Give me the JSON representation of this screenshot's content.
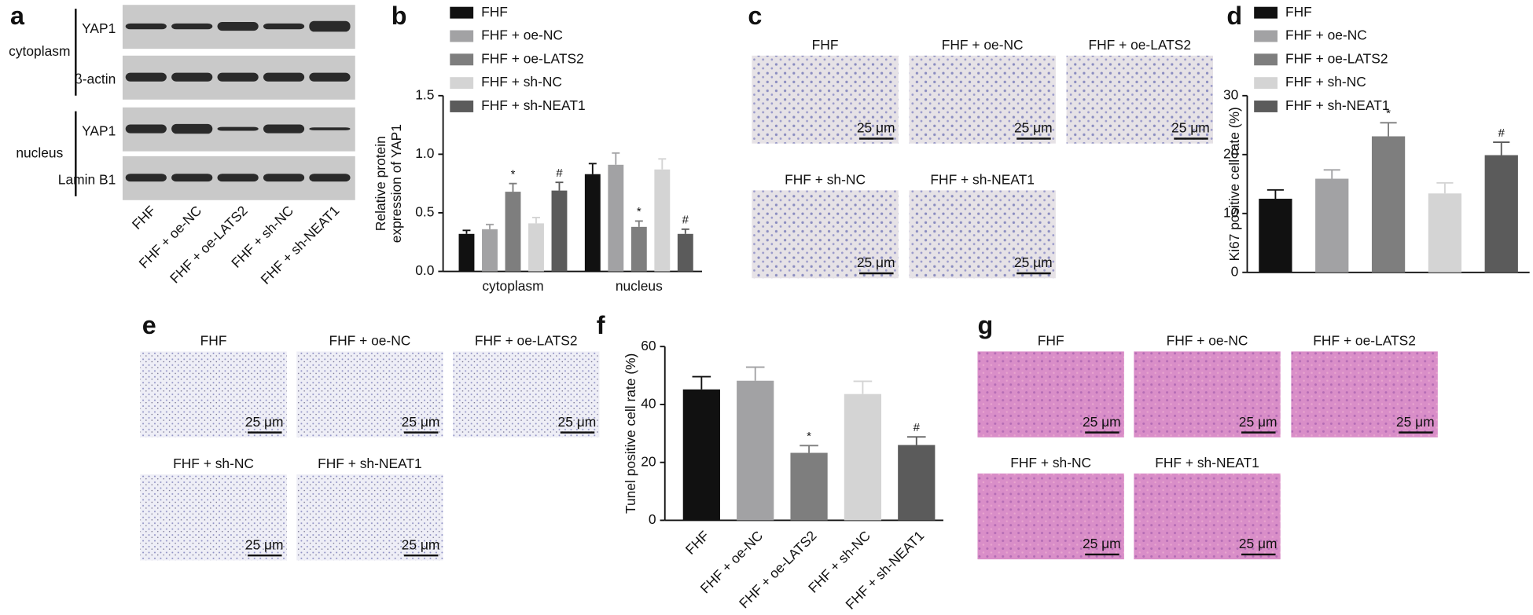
{
  "panel_labels": [
    "a",
    "b",
    "c",
    "d",
    "e",
    "f",
    "g"
  ],
  "blot": {
    "fractions": [
      {
        "name": "cytoplasm",
        "rows": [
          "YAP1",
          "β-actin"
        ]
      },
      {
        "name": "nucleus",
        "rows": [
          "YAP1",
          "Lamin B1"
        ]
      }
    ],
    "lanes": [
      "FHF",
      "FHF + oe-NC",
      "FHF + oe-LATS2",
      "FHF + sh-NC",
      "FHF + sh-NEAT1"
    ]
  },
  "micrographs": {
    "c": {
      "captions": [
        "FHF",
        "FHF + oe-NC",
        "FHF + oe-LATS2",
        "FHF + sh-NC",
        "FHF + sh-NEAT1"
      ],
      "scale_bar": "25 μm"
    },
    "e": {
      "captions": [
        "FHF",
        "FHF + oe-NC",
        "FHF + oe-LATS2",
        "FHF + sh-NC",
        "FHF + sh-NEAT1"
      ],
      "scale_bar": "25 μm"
    },
    "g": {
      "captions": [
        "FHF",
        "FHF + oe-NC",
        "FHF + oe-LATS2",
        "FHF + sh-NC",
        "FHF + sh-NEAT1"
      ],
      "scale_bar": "25 μm"
    }
  },
  "chart_data": [
    {
      "type": "bar",
      "ylabel": [
        "Relative protein",
        "expression of YAP1"
      ],
      "categories": [
        "cytoplasm",
        "nucleus"
      ],
      "series": [
        {
          "name": "FHF",
          "color": "#111111",
          "values": [
            0.32,
            0.83
          ],
          "errors": [
            0.03,
            0.09
          ]
        },
        {
          "name": "FHF + oe-NC",
          "color": "#a2a2a4",
          "values": [
            0.36,
            0.91
          ],
          "errors": [
            0.04,
            0.1
          ]
        },
        {
          "name": "FHF + oe-LATS2",
          "color": "#7e7e7e",
          "values": [
            0.68,
            0.38
          ],
          "errors": [
            0.07,
            0.05
          ],
          "annotations": [
            "*",
            "*"
          ]
        },
        {
          "name": "FHF + sh-NC",
          "color": "#d4d4d4",
          "values": [
            0.41,
            0.87
          ],
          "errors": [
            0.05,
            0.09
          ]
        },
        {
          "name": "FHF + sh-NEAT1",
          "color": "#5b5b5b",
          "values": [
            0.69,
            0.32
          ],
          "errors": [
            0.07,
            0.04
          ],
          "annotations": [
            "#",
            "#"
          ]
        }
      ],
      "ylim": [
        0,
        1.5
      ],
      "yticks": [
        {
          "value": 0,
          "label": "0.0"
        },
        0.5,
        {
          "value": 1,
          "label": "1.0"
        },
        1.5
      ]
    },
    {
      "type": "bar",
      "ylabel": [
        "Ki67 positive cell rate (%)"
      ],
      "categories": [
        null
      ],
      "series": [
        {
          "name": "FHF",
          "color": "#111111",
          "values": [
            12.5
          ],
          "errors": [
            1.5
          ]
        },
        {
          "name": "FHF + oe-NC",
          "color": "#a2a2a4",
          "values": [
            15.9
          ],
          "errors": [
            1.5
          ]
        },
        {
          "name": "FHF + oe-LATS2",
          "color": "#7e7e7e",
          "values": [
            23.1
          ],
          "errors": [
            2.3
          ],
          "annotations": [
            "*"
          ]
        },
        {
          "name": "FHF + sh-NC",
          "color": "#d4d4d4",
          "values": [
            13.4
          ],
          "errors": [
            1.8
          ]
        },
        {
          "name": "FHF + sh-NEAT1",
          "color": "#5b5b5b",
          "values": [
            19.9
          ],
          "errors": [
            2.2
          ],
          "annotations": [
            "#"
          ]
        }
      ],
      "ylim": [
        0,
        30
      ],
      "yticks": [
        0,
        10,
        20,
        30
      ]
    },
    {
      "type": "bar",
      "ylabel": [
        "Tunel positive cell rate (%)"
      ],
      "categories": [
        "FHF",
        "FHF + oe-NC",
        "FHF + oe-LATS2",
        "FHF + sh-NC",
        "FHF + sh-NEAT1"
      ],
      "series": [
        {
          "colors": [
            "#111111",
            "#a2a2a4",
            "#7e7e7e",
            "#d4d4d4",
            "#5b5b5b"
          ],
          "values": [
            45.2,
            48.2,
            23.3,
            43.6,
            26.0
          ],
          "errors": [
            4.4,
            4.7,
            2.5,
            4.4,
            2.8
          ],
          "annotations": [
            null,
            null,
            "*",
            null,
            "#"
          ]
        }
      ],
      "ylim": [
        0,
        60
      ],
      "yticks": [
        0,
        20,
        40,
        60
      ]
    }
  ]
}
